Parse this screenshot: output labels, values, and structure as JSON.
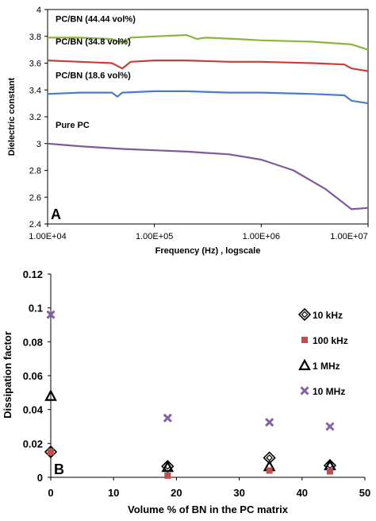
{
  "chart_data": [
    {
      "type": "line",
      "panel_label": "A",
      "xlabel": "Frequency  (Hz) , logscale",
      "ylabel": "Dielectric constant",
      "x_scale": "log",
      "xlim": [
        10000,
        10000000
      ],
      "ylim": [
        2.4,
        4
      ],
      "x_ticks": [
        "1.00E+04",
        "1.00E+05",
        "1.00E+06",
        "1.00E+07"
      ],
      "y_ticks": [
        "2.4",
        "2.6",
        "2.8",
        "3",
        "3.2",
        "3.4",
        "3.6",
        "3.8",
        "4"
      ],
      "grid": false,
      "series": [
        {
          "name": "PC/BN (44.44 vol%)",
          "color": "#8db43f",
          "x": [
            10000,
            20000,
            40000,
            50000,
            60000,
            100000,
            200000,
            250000,
            300000,
            600000,
            1000000,
            3000000,
            7000000,
            10000000
          ],
          "y": [
            3.79,
            3.79,
            3.78,
            3.75,
            3.79,
            3.8,
            3.81,
            3.78,
            3.79,
            3.78,
            3.77,
            3.76,
            3.74,
            3.7
          ]
        },
        {
          "name": "PC/BN (34.8 vol%)",
          "color": "#c4403a",
          "x": [
            10000,
            20000,
            40000,
            50000,
            60000,
            100000,
            200000,
            500000,
            1000000,
            3000000,
            6000000,
            7000000,
            10000000
          ],
          "y": [
            3.62,
            3.61,
            3.6,
            3.56,
            3.61,
            3.62,
            3.62,
            3.61,
            3.61,
            3.6,
            3.59,
            3.56,
            3.54
          ]
        },
        {
          "name": "PC/BN (18.6 vol%)",
          "color": "#4a7ec0",
          "x": [
            10000,
            20000,
            40000,
            45000,
            50000,
            100000,
            200000,
            500000,
            1000000,
            3000000,
            6000000,
            7000000,
            10000000
          ],
          "y": [
            3.37,
            3.38,
            3.38,
            3.35,
            3.38,
            3.39,
            3.39,
            3.38,
            3.38,
            3.37,
            3.36,
            3.32,
            3.3
          ]
        },
        {
          "name": "Pure PC",
          "color": "#7e58a0",
          "x": [
            10000,
            20000,
            50000,
            100000,
            200000,
            500000,
            1000000,
            2000000,
            4000000,
            7000000,
            10000000
          ],
          "y": [
            3.0,
            2.98,
            2.96,
            2.95,
            2.94,
            2.92,
            2.88,
            2.8,
            2.66,
            2.51,
            2.52
          ]
        }
      ]
    },
    {
      "type": "scatter",
      "panel_label": "B",
      "xlabel": "Volume % of BN in the PC matrix",
      "ylabel": "Dissipation factor",
      "xlim": [
        0,
        50
      ],
      "ylim": [
        0,
        0.12
      ],
      "x_ticks": [
        "0",
        "10",
        "20",
        "30",
        "40",
        "50"
      ],
      "y_ticks": [
        "0",
        "0.02",
        "0.04",
        "0.06",
        "0.08",
        "0.1",
        "0.12"
      ],
      "grid": false,
      "legend_position": "top-right",
      "series": [
        {
          "name": "10 kHz",
          "marker": "diamond",
          "color": "#000000",
          "x": [
            0,
            18.6,
            34.8,
            44.44
          ],
          "y": [
            0.015,
            0.0065,
            0.0115,
            0.007
          ]
        },
        {
          "name": "100 kHz",
          "marker": "square",
          "color": "#c0504d",
          "x": [
            0,
            18.6,
            34.8,
            44.44
          ],
          "y": [
            0.015,
            0.001,
            0.004,
            0.0035
          ]
        },
        {
          "name": "1 MHz",
          "marker": "triangle",
          "color": "#000000",
          "x": [
            0,
            18.6,
            34.8,
            44.44
          ],
          "y": [
            0.048,
            0.006,
            0.0065,
            0.007
          ]
        },
        {
          "name": "10 MHz",
          "marker": "cross",
          "color": "#8064a2",
          "x": [
            0,
            18.6,
            34.8,
            44.44
          ],
          "y": [
            0.096,
            0.035,
            0.0325,
            0.03
          ]
        }
      ]
    }
  ]
}
